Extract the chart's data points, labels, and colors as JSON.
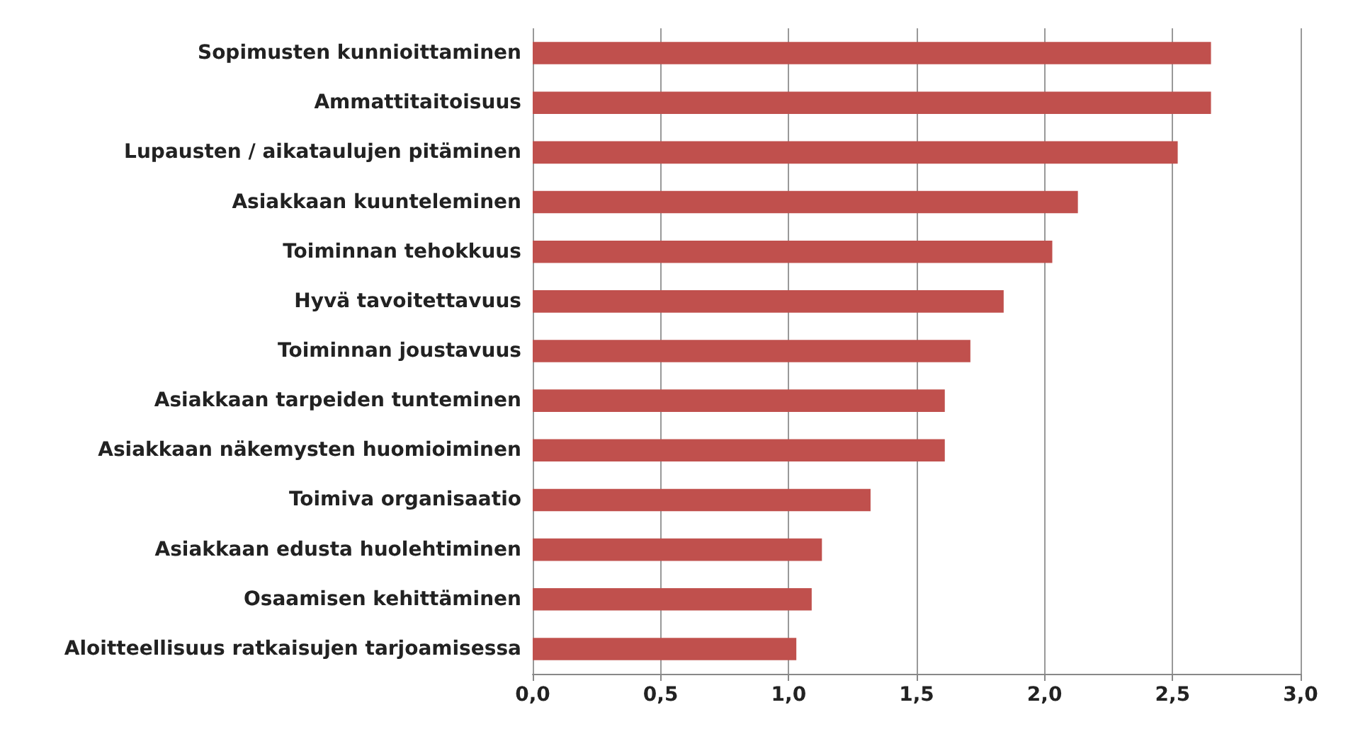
{
  "chart_data": {
    "type": "bar",
    "orientation": "horizontal",
    "categories": [
      "Sopimusten kunnioittaminen",
      "Ammattitaitoisuus",
      "Lupausten / aikataulujen pitäminen",
      "Asiakkaan kuunteleminen",
      "Toiminnan tehokkuus",
      "Hyvä tavoitettavuus",
      "Toiminnan joustavuus",
      "Asiakkaan tarpeiden tunteminen",
      "Asiakkaan näkemysten huomioiminen",
      "Toimiva organisaatio",
      "Asiakkaan edusta huolehtiminen",
      "Osaamisen kehittäminen",
      "Aloitteellisuus ratkaisujen tarjoamisessa"
    ],
    "values": [
      2.65,
      2.65,
      2.52,
      2.13,
      2.03,
      1.84,
      1.71,
      1.61,
      1.61,
      1.32,
      1.13,
      1.09,
      1.03
    ],
    "color": "#c0504d",
    "xlim": [
      0,
      3
    ],
    "xticks": [
      {
        "value": 0,
        "label": "0,0"
      },
      {
        "value": 0.5,
        "label": "0,5"
      },
      {
        "value": 1,
        "label": "1,0"
      },
      {
        "value": 1.5,
        "label": "1,5"
      },
      {
        "value": 2,
        "label": "2,0"
      },
      {
        "value": 2.5,
        "label": "2,5"
      },
      {
        "value": 3,
        "label": "3,0"
      }
    ],
    "grid": "x"
  }
}
